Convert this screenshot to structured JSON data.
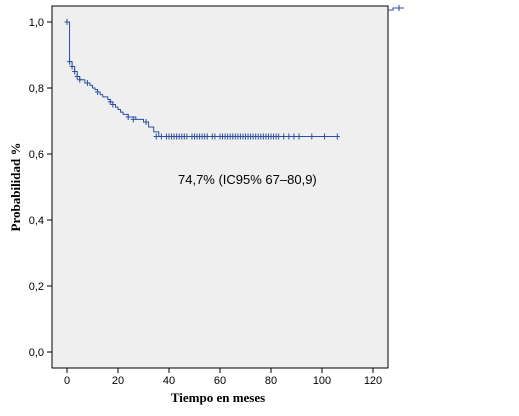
{
  "chart_data": {
    "type": "line",
    "subtype": "kaplan-meier",
    "xlabel": "Tiempo en meses",
    "ylabel": "Probabilidad %",
    "xlim": [
      0,
      120
    ],
    "ylim": [
      0,
      1
    ],
    "x_ticks": [
      0,
      20,
      40,
      60,
      80,
      100,
      120
    ],
    "x_tick_labels": [
      "0",
      "20",
      "40",
      "60",
      "80",
      "100",
      "120"
    ],
    "y_ticks": [
      0,
      0.2,
      0.4,
      0.6,
      0.8,
      1.0
    ],
    "y_tick_labels": [
      "0,0",
      "0,2",
      "0,4",
      "0,6",
      "0,8",
      "1,0"
    ],
    "annotation": "74,7% (IC95% 67–80,9)",
    "grid": false,
    "colors": {
      "line": "#2b4ea0",
      "plot_bg": "#efefef"
    },
    "series": [
      {
        "steps": [
          [
            0,
            1.0
          ],
          [
            1,
            0.88
          ],
          [
            2,
            0.865
          ],
          [
            3,
            0.85
          ],
          [
            4,
            0.835
          ],
          [
            5,
            0.825
          ],
          [
            7,
            0.815
          ],
          [
            9,
            0.808
          ],
          [
            10,
            0.8
          ],
          [
            11,
            0.795
          ],
          [
            12,
            0.788
          ],
          [
            13,
            0.78
          ],
          [
            14,
            0.773
          ],
          [
            16,
            0.765
          ],
          [
            17,
            0.758
          ],
          [
            18,
            0.75
          ],
          [
            19,
            0.742
          ],
          [
            20,
            0.735
          ],
          [
            21,
            0.727
          ],
          [
            22,
            0.72
          ],
          [
            24,
            0.712
          ],
          [
            27,
            0.705
          ],
          [
            30,
            0.697
          ],
          [
            32,
            0.682
          ],
          [
            34,
            0.667
          ],
          [
            36,
            0.653
          ],
          [
            106,
            0.653
          ]
        ],
        "censored": [
          [
            0,
            1.0
          ],
          [
            1,
            0.88
          ],
          [
            2,
            0.865
          ],
          [
            3,
            0.85
          ],
          [
            4,
            0.835
          ],
          [
            5,
            0.825
          ],
          [
            8,
            0.815
          ],
          [
            12,
            0.788
          ],
          [
            17,
            0.758
          ],
          [
            18,
            0.75
          ],
          [
            24,
            0.712
          ],
          [
            26,
            0.705
          ],
          [
            31,
            0.697
          ],
          [
            35,
            0.653
          ],
          [
            37,
            0.653
          ],
          [
            39,
            0.653
          ],
          [
            40,
            0.653
          ],
          [
            41,
            0.653
          ],
          [
            42,
            0.653
          ],
          [
            43,
            0.653
          ],
          [
            44,
            0.653
          ],
          [
            45,
            0.653
          ],
          [
            46,
            0.653
          ],
          [
            47,
            0.653
          ],
          [
            49,
            0.653
          ],
          [
            50,
            0.653
          ],
          [
            51,
            0.653
          ],
          [
            52,
            0.653
          ],
          [
            53,
            0.653
          ],
          [
            54,
            0.653
          ],
          [
            55,
            0.653
          ],
          [
            57,
            0.653
          ],
          [
            58,
            0.653
          ],
          [
            60,
            0.653
          ],
          [
            61,
            0.653
          ],
          [
            62,
            0.653
          ],
          [
            63,
            0.653
          ],
          [
            64,
            0.653
          ],
          [
            65,
            0.653
          ],
          [
            66,
            0.653
          ],
          [
            67,
            0.653
          ],
          [
            68,
            0.653
          ],
          [
            69,
            0.653
          ],
          [
            70,
            0.653
          ],
          [
            71,
            0.653
          ],
          [
            72,
            0.653
          ],
          [
            73,
            0.653
          ],
          [
            74,
            0.653
          ],
          [
            75,
            0.653
          ],
          [
            76,
            0.653
          ],
          [
            77,
            0.653
          ],
          [
            78,
            0.653
          ],
          [
            79,
            0.653
          ],
          [
            80,
            0.653
          ],
          [
            81,
            0.653
          ],
          [
            82,
            0.653
          ],
          [
            83,
            0.653
          ],
          [
            85,
            0.653
          ],
          [
            87,
            0.653
          ],
          [
            89,
            0.653
          ],
          [
            91,
            0.653
          ],
          [
            96,
            0.653
          ],
          [
            101,
            0.653
          ],
          [
            106,
            0.653
          ]
        ]
      }
    ]
  }
}
